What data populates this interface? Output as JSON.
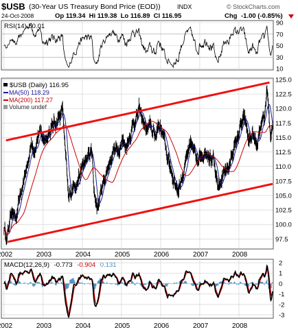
{
  "header": {
    "symbol": "$USB",
    "name": "(30-Year US Treasury Bond Price (EOD))",
    "exchange": "INDX",
    "date": "24-Oct-2008",
    "quote": "Op 119.34  Hi 119.38  Lo 116.89  Cl 116.95",
    "chg_label": "Chg",
    "chg_value": "-1.00 (-0.85%)",
    "brand": "© StockCharts.com"
  },
  "colors": {
    "price": "#000000",
    "ma50": "#1a1a99",
    "ma200": "#cc0000",
    "channel": "#ee1111",
    "macd_line": "#000000",
    "macd_signal": "#cc0000",
    "macd_hist": "#4a8fc0",
    "grid": "#cccccc",
    "chg_negative": "#cc0000"
  },
  "rsi_panel": {
    "legend": "RSI(14) 50.01",
    "ticks": [
      "90",
      "70",
      "50",
      "30",
      "10"
    ]
  },
  "price_panel": {
    "legend": [
      "$USB (Daily) 116.95",
      "MA(50) 118.29",
      "MA(200) 117.27",
      "Volume undef"
    ]
  },
  "macd_panel": {
    "legend_label": "MACD(12,26,9)",
    "legend_macd": "-0.773",
    "legend_signal": "-0.904",
    "legend_hist": "0.131",
    "ticks": [
      "2",
      "1",
      "0",
      "-1",
      "-2",
      "-3"
    ]
  },
  "chart_data": {
    "type": "line",
    "title": "$USB (30-Year US Treasury Bond Price (EOD))",
    "period": "Daily",
    "x_ticks": [
      "2002",
      "2003",
      "2004",
      "2005",
      "2006",
      "2007",
      "2008"
    ],
    "y_ticks": [
      "125.0",
      "122.5",
      "120.0",
      "117.5",
      "115.0",
      "112.5",
      "110.0",
      "107.5",
      "105.0",
      "102.5",
      "100.0",
      "97.5"
    ],
    "ylim": [
      96,
      125
    ],
    "xlim": [
      2001.95,
      2008.86
    ],
    "close_anchors": [
      [
        2002.0,
        99.5
      ],
      [
        2002.08,
        97.5
      ],
      [
        2002.2,
        103.0
      ],
      [
        2002.3,
        100.5
      ],
      [
        2002.4,
        104.0
      ],
      [
        2002.5,
        107.5
      ],
      [
        2002.6,
        110.5
      ],
      [
        2002.7,
        114.0
      ],
      [
        2002.8,
        113.5
      ],
      [
        2002.9,
        116.0
      ],
      [
        2003.0,
        114.5
      ],
      [
        2003.15,
        116.0
      ],
      [
        2003.3,
        117.5
      ],
      [
        2003.4,
        118.5
      ],
      [
        2003.5,
        120.0
      ],
      [
        2003.55,
        114.0
      ],
      [
        2003.65,
        104.0
      ],
      [
        2003.75,
        106.5
      ],
      [
        2003.85,
        107.5
      ],
      [
        2003.95,
        109.0
      ],
      [
        2004.1,
        111.0
      ],
      [
        2004.25,
        112.5
      ],
      [
        2004.3,
        105.0
      ],
      [
        2004.4,
        103.0
      ],
      [
        2004.5,
        106.5
      ],
      [
        2004.6,
        108.5
      ],
      [
        2004.7,
        111.0
      ],
      [
        2004.8,
        113.0
      ],
      [
        2004.9,
        112.5
      ],
      [
        2005.0,
        115.0
      ],
      [
        2005.1,
        113.5
      ],
      [
        2005.2,
        115.0
      ],
      [
        2005.3,
        117.5
      ],
      [
        2005.45,
        119.5
      ],
      [
        2005.55,
        118.0
      ],
      [
        2005.65,
        116.0
      ],
      [
        2005.75,
        117.0
      ],
      [
        2005.85,
        115.0
      ],
      [
        2005.95,
        117.5
      ],
      [
        2006.05,
        116.0
      ],
      [
        2006.2,
        111.0
      ],
      [
        2006.35,
        107.5
      ],
      [
        2006.45,
        106.0
      ],
      [
        2006.6,
        109.5
      ],
      [
        2006.7,
        112.0
      ],
      [
        2006.8,
        113.5
      ],
      [
        2006.9,
        111.5
      ],
      [
        2007.0,
        112.0
      ],
      [
        2007.1,
        112.5
      ],
      [
        2007.2,
        113.0
      ],
      [
        2007.35,
        111.0
      ],
      [
        2007.45,
        106.0
      ],
      [
        2007.55,
        107.5
      ],
      [
        2007.65,
        110.0
      ],
      [
        2007.75,
        109.5
      ],
      [
        2007.85,
        113.0
      ],
      [
        2007.95,
        114.5
      ],
      [
        2008.05,
        117.0
      ],
      [
        2008.15,
        118.0
      ],
      [
        2008.25,
        114.5
      ],
      [
        2008.35,
        115.5
      ],
      [
        2008.45,
        113.0
      ],
      [
        2008.55,
        116.0
      ],
      [
        2008.65,
        117.5
      ],
      [
        2008.72,
        124.0
      ],
      [
        2008.78,
        118.0
      ],
      [
        2008.82,
        114.0
      ],
      [
        2008.86,
        116.95
      ]
    ],
    "last_close": 116.95,
    "ma50_last": 118.29,
    "ma200_last": 117.27,
    "channel_upper": [
      [
        2002.05,
        114.5
      ],
      [
        2008.78,
        124.5
      ]
    ],
    "channel_lower": [
      [
        2002.1,
        97.0
      ],
      [
        2008.86,
        107.0
      ]
    ],
    "rsi": {
      "ylim": [
        10,
        90
      ],
      "gridlines": [
        30,
        50,
        70
      ],
      "last": 50.01
    },
    "macd": {
      "ylim": [
        -3.2,
        2.2
      ],
      "params": "12,26,9",
      "macd": -0.773,
      "signal": -0.904,
      "histogram": 0.131
    }
  }
}
